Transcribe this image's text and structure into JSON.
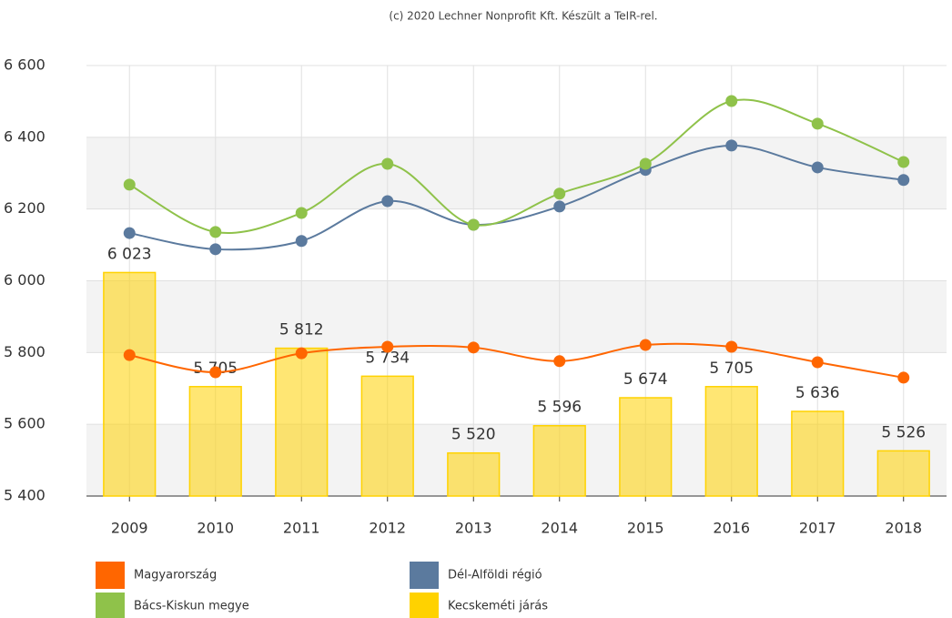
{
  "chart_data": {
    "type": "combo",
    "credit": "(c) 2020 Lechner Nonprofit Kft. Készült a TeIR-rel.",
    "categories": [
      "2009",
      "2010",
      "2011",
      "2012",
      "2013",
      "2014",
      "2015",
      "2016",
      "2017",
      "2018"
    ],
    "ylim": [
      5400,
      6600
    ],
    "yticks": [
      {
        "value": 5400,
        "label": "5 400"
      },
      {
        "value": 5600,
        "label": "5 600"
      },
      {
        "value": 5800,
        "label": "5 800"
      },
      {
        "value": 6000,
        "label": "6 000"
      },
      {
        "value": 6200,
        "label": "6 200"
      },
      {
        "value": 6400,
        "label": "6 400"
      },
      {
        "value": 6600,
        "label": "6 600"
      }
    ],
    "grid": true,
    "series": [
      {
        "name": "Kecskeméti járás",
        "type": "bar",
        "color": "#ffd200",
        "values": [
          6023,
          5705,
          5812,
          5734,
          5520,
          5596,
          5674,
          5705,
          5636,
          5526
        ],
        "value_labels": [
          "6 023",
          "5 705",
          "5 812",
          "5 734",
          "5 520",
          "5 596",
          "5 674",
          "5 705",
          "5 636",
          "5 526"
        ]
      },
      {
        "name": "Magyarország",
        "type": "line",
        "color": "#ff6600",
        "values": [
          5793,
          5745,
          5798,
          5816,
          5814,
          5776,
          5821,
          5816,
          5773,
          5730
        ]
      },
      {
        "name": "Dél-Alföldi régió",
        "type": "line",
        "color": "#5b7a9e",
        "values": [
          6133,
          6088,
          6111,
          6222,
          6156,
          6207,
          6309,
          6377,
          6316,
          6281
        ]
      },
      {
        "name": "Bács-Kiskun megye",
        "type": "line",
        "color": "#8fc24a",
        "values": [
          6268,
          6136,
          6189,
          6326,
          6156,
          6243,
          6326,
          6501,
          6438,
          6331
        ]
      }
    ]
  }
}
